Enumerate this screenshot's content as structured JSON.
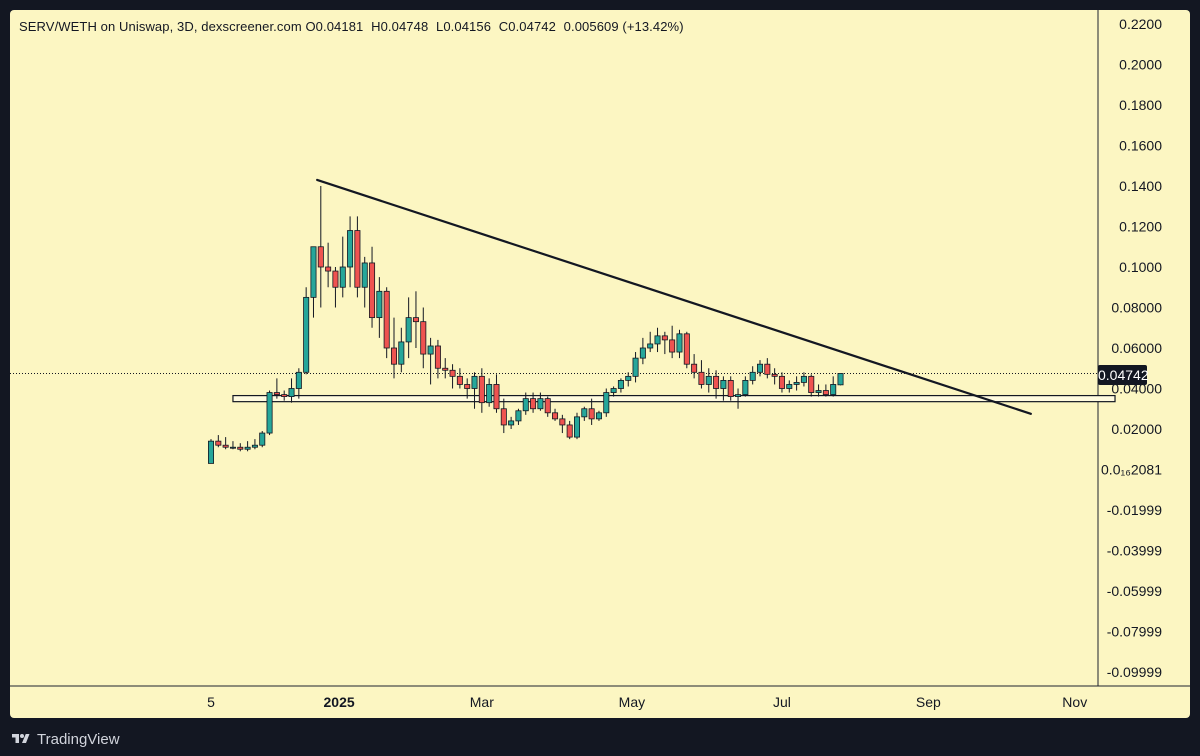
{
  "legend": {
    "pair": "SERV/WETH on Uniswap, 3D, dexscreener.com",
    "open": "O0.04181",
    "high": "H0.04748",
    "low": "L0.04156",
    "close": "C0.04742",
    "change": "0.005609 (+13.42%)"
  },
  "current_price_label": "0.04742",
  "branding": {
    "name": "TradingView",
    "icon": "tradingview-logo-icon"
  },
  "colors": {
    "up": "#26a69a",
    "down": "#ef5350",
    "background": "#fcf6c2",
    "frame": "#131722"
  },
  "chart_data": {
    "type": "candlestick",
    "title": "SERV/WETH on Uniswap, 3D, dexscreener.com",
    "interval": "3D",
    "xlabel": "",
    "ylabel": "",
    "ylim": [
      -0.11,
      0.22
    ],
    "y_tick_labels": [
      "0.2200",
      "0.2000",
      "0.1800",
      "0.1600",
      "0.1400",
      "0.1200",
      "0.1000",
      "0.08000",
      "0.06000",
      "0.04000",
      "0.02000",
      "0.0₁₆2081",
      "-0.01999",
      "-0.03999",
      "-0.05999",
      "-0.07999",
      "-0.09999"
    ],
    "x_tick_labels": [
      {
        "label": "5",
        "bar": 0
      },
      {
        "label": "2025",
        "bar": 17.5
      },
      {
        "label": "Mar",
        "bar": 37
      },
      {
        "label": "May",
        "bar": 57.5
      },
      {
        "label": "Jul",
        "bar": 78
      },
      {
        "label": "Sep",
        "bar": 98
      },
      {
        "label": "Nov",
        "bar": 118
      }
    ],
    "candles": [
      [
        0.003,
        0.015,
        0.003,
        0.014
      ],
      [
        0.014,
        0.017,
        0.011,
        0.012
      ],
      [
        0.012,
        0.016,
        0.01,
        0.011
      ],
      [
        0.011,
        0.014,
        0.01,
        0.011
      ],
      [
        0.011,
        0.013,
        0.009,
        0.01
      ],
      [
        0.01,
        0.014,
        0.009,
        0.011
      ],
      [
        0.011,
        0.015,
        0.01,
        0.012
      ],
      [
        0.012,
        0.019,
        0.011,
        0.018
      ],
      [
        0.018,
        0.039,
        0.017,
        0.038
      ],
      [
        0.038,
        0.045,
        0.035,
        0.037
      ],
      [
        0.037,
        0.039,
        0.034,
        0.036
      ],
      [
        0.036,
        0.045,
        0.033,
        0.04
      ],
      [
        0.04,
        0.05,
        0.035,
        0.048
      ],
      [
        0.048,
        0.09,
        0.047,
        0.085
      ],
      [
        0.085,
        0.11,
        0.075,
        0.11
      ],
      [
        0.11,
        0.14,
        0.08,
        0.1
      ],
      [
        0.1,
        0.112,
        0.09,
        0.098
      ],
      [
        0.098,
        0.1,
        0.08,
        0.09
      ],
      [
        0.09,
        0.115,
        0.085,
        0.1
      ],
      [
        0.1,
        0.125,
        0.09,
        0.118
      ],
      [
        0.118,
        0.125,
        0.085,
        0.09
      ],
      [
        0.09,
        0.105,
        0.08,
        0.102
      ],
      [
        0.102,
        0.11,
        0.07,
        0.075
      ],
      [
        0.075,
        0.095,
        0.065,
        0.088
      ],
      [
        0.088,
        0.09,
        0.055,
        0.06
      ],
      [
        0.06,
        0.075,
        0.045,
        0.052
      ],
      [
        0.052,
        0.07,
        0.048,
        0.063
      ],
      [
        0.063,
        0.085,
        0.055,
        0.075
      ],
      [
        0.075,
        0.088,
        0.06,
        0.073
      ],
      [
        0.073,
        0.08,
        0.05,
        0.057
      ],
      [
        0.057,
        0.065,
        0.042,
        0.061
      ],
      [
        0.061,
        0.064,
        0.045,
        0.05
      ],
      [
        0.05,
        0.055,
        0.045,
        0.049
      ],
      [
        0.049,
        0.052,
        0.04,
        0.046
      ],
      [
        0.046,
        0.05,
        0.04,
        0.042
      ],
      [
        0.042,
        0.045,
        0.035,
        0.04
      ],
      [
        0.04,
        0.048,
        0.03,
        0.046
      ],
      [
        0.046,
        0.05,
        0.028,
        0.033
      ],
      [
        0.033,
        0.045,
        0.031,
        0.042
      ],
      [
        0.042,
        0.047,
        0.028,
        0.03
      ],
      [
        0.03,
        0.035,
        0.018,
        0.022
      ],
      [
        0.022,
        0.026,
        0.02,
        0.024
      ],
      [
        0.024,
        0.03,
        0.022,
        0.029
      ],
      [
        0.029,
        0.038,
        0.027,
        0.035
      ],
      [
        0.035,
        0.038,
        0.028,
        0.03
      ],
      [
        0.03,
        0.038,
        0.029,
        0.035
      ],
      [
        0.035,
        0.036,
        0.026,
        0.028
      ],
      [
        0.028,
        0.03,
        0.024,
        0.025
      ],
      [
        0.025,
        0.027,
        0.018,
        0.022
      ],
      [
        0.022,
        0.024,
        0.015,
        0.016
      ],
      [
        0.016,
        0.028,
        0.015,
        0.026
      ],
      [
        0.026,
        0.031,
        0.024,
        0.03
      ],
      [
        0.03,
        0.035,
        0.022,
        0.025
      ],
      [
        0.025,
        0.029,
        0.024,
        0.028
      ],
      [
        0.028,
        0.04,
        0.026,
        0.038
      ],
      [
        0.038,
        0.041,
        0.036,
        0.04
      ],
      [
        0.04,
        0.045,
        0.038,
        0.044
      ],
      [
        0.044,
        0.048,
        0.041,
        0.046
      ],
      [
        0.046,
        0.058,
        0.043,
        0.055
      ],
      [
        0.055,
        0.065,
        0.052,
        0.06
      ],
      [
        0.06,
        0.068,
        0.058,
        0.062
      ],
      [
        0.062,
        0.07,
        0.058,
        0.066
      ],
      [
        0.066,
        0.068,
        0.057,
        0.064
      ],
      [
        0.064,
        0.071,
        0.055,
        0.058
      ],
      [
        0.058,
        0.069,
        0.055,
        0.067
      ],
      [
        0.067,
        0.068,
        0.05,
        0.052
      ],
      [
        0.052,
        0.057,
        0.045,
        0.048
      ],
      [
        0.048,
        0.054,
        0.04,
        0.042
      ],
      [
        0.042,
        0.05,
        0.038,
        0.046
      ],
      [
        0.046,
        0.049,
        0.035,
        0.04
      ],
      [
        0.04,
        0.046,
        0.034,
        0.044
      ],
      [
        0.044,
        0.046,
        0.034,
        0.036
      ],
      [
        0.036,
        0.04,
        0.03,
        0.037
      ],
      [
        0.037,
        0.046,
        0.036,
        0.044
      ],
      [
        0.044,
        0.051,
        0.042,
        0.048
      ],
      [
        0.048,
        0.054,
        0.046,
        0.052
      ],
      [
        0.052,
        0.055,
        0.045,
        0.047
      ],
      [
        0.047,
        0.05,
        0.042,
        0.046
      ],
      [
        0.046,
        0.048,
        0.038,
        0.04
      ],
      [
        0.04,
        0.044,
        0.038,
        0.042
      ],
      [
        0.042,
        0.046,
        0.039,
        0.043
      ],
      [
        0.043,
        0.048,
        0.041,
        0.046
      ],
      [
        0.046,
        0.047,
        0.036,
        0.038
      ],
      [
        0.038,
        0.042,
        0.036,
        0.039
      ],
      [
        0.039,
        0.042,
        0.036,
        0.037
      ],
      [
        0.037,
        0.046,
        0.036,
        0.042
      ],
      [
        0.04181,
        0.04748,
        0.04156,
        0.04742
      ]
    ],
    "trendline": {
      "from_bar": 14.5,
      "from_value": 0.143,
      "to_bar": 112,
      "to_value": 0.0275
    },
    "support_zone": {
      "from_bar": 3,
      "to_bar": 123.5,
      "low": 0.0335,
      "high": 0.0365
    },
    "last_price": 0.04742,
    "grid": false
  }
}
